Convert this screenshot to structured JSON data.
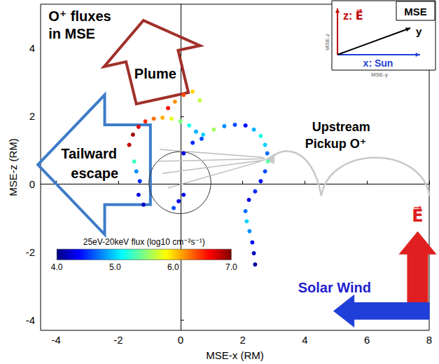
{
  "chart_data": {
    "type": "scatter",
    "xlabel": "MSE-x (RM)",
    "ylabel": "MSE-z (RM)",
    "xlim": [
      -4.5,
      8
    ],
    "ylim": [
      -4.3,
      5.3
    ],
    "xticks": [
      -4,
      -2,
      0,
      2,
      4,
      6,
      8
    ],
    "yticks": [
      -4,
      -2,
      0,
      2,
      4
    ],
    "grid": false,
    "marker": "circle",
    "x": [
      -1.65,
      -1.53,
      -1.35,
      -1.13,
      -0.86,
      -0.58,
      -0.29,
      0.0,
      0.28,
      0.5,
      0.68,
      -0.18,
      0.1,
      0.39,
      0.62,
      -0.4,
      -1.49,
      -1.42,
      -1.31,
      -1.35,
      -1.19,
      0.1,
      0.39,
      0.73,
      1.07,
      1.41,
      1.75,
      2.09,
      2.36,
      2.58,
      2.72,
      2.79,
      2.81,
      2.72,
      2.58,
      2.4,
      2.2,
      2.09,
      2.13,
      2.22,
      2.31,
      2.36,
      2.4,
      -0.06,
      -0.22,
      0.1
    ],
    "y": [
      1.16,
      1.46,
      1.69,
      1.85,
      1.93,
      1.96,
      1.93,
      1.85,
      1.73,
      1.55,
      1.34,
      2.43,
      2.63,
      2.73,
      2.47,
      2.24,
      0.67,
      0.38,
      0.09,
      -0.31,
      -0.6,
      0.91,
      1.22,
      1.46,
      1.61,
      1.71,
      1.75,
      1.73,
      1.61,
      1.42,
      1.16,
      0.91,
      0.67,
      0.38,
      0.09,
      -0.21,
      -0.46,
      -0.79,
      -1.09,
      -1.38,
      -1.71,
      -2.03,
      -2.36,
      -0.5,
      -0.7,
      -0.31
    ],
    "flux": [
      6.8,
      6.9,
      6.7,
      6.5,
      6.3,
      6.1,
      5.8,
      5.5,
      5.2,
      4.9,
      4.6,
      6.2,
      6.4,
      6.0,
      5.7,
      6.6,
      5.3,
      4.8,
      4.5,
      4.3,
      4.2,
      4.3,
      4.5,
      5.0,
      5.6,
      4.8,
      4.6,
      4.4,
      4.9,
      5.2,
      5.0,
      4.7,
      5.4,
      4.6,
      4.4,
      4.5,
      4.3,
      4.7,
      5.0,
      4.8,
      4.4,
      4.2,
      4.1,
      4.4,
      4.6,
      4.3
    ],
    "colorbar": {
      "label": "25eV-20keV flux (log10 cm⁻²s⁻¹)",
      "range": [
        4,
        7
      ],
      "ticks": [
        {
          "value": 4,
          "label": "4.0"
        },
        {
          "value": 5,
          "label": "5.0"
        },
        {
          "value": 6,
          "label": "6.0"
        },
        {
          "value": 7,
          "label": "7.0"
        }
      ]
    },
    "annotations": {
      "title": [
        "O⁺ fluxes",
        "in MSE"
      ],
      "plume": "Plume",
      "tailward": [
        "Tailward",
        "escape"
      ],
      "upstream": [
        "Upstream",
        "Pickup O⁺"
      ],
      "solar_wind": "Solar Wind",
      "field": "E⃗"
    },
    "inset": {
      "title": "MSE",
      "z": "z: E⃗",
      "y": "y",
      "x": "x: Sun",
      "z_axis": "MSE-z",
      "y_axis": "MSE-y"
    }
  }
}
